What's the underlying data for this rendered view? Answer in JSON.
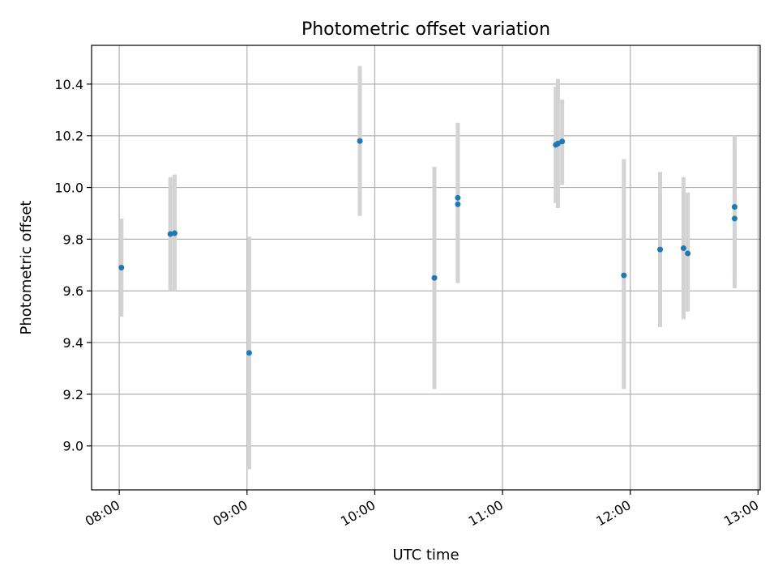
{
  "chart_data": {
    "type": "scatter",
    "title": "Photometric offset variation",
    "xlabel": "UTC time",
    "ylabel": "Photometric offset",
    "xlim": [
      "07:47",
      "13:01"
    ],
    "ylim": [
      8.83,
      10.55
    ],
    "xticks": [
      "08:00",
      "09:00",
      "10:00",
      "11:00",
      "12:00",
      "13:00"
    ],
    "yticks": [
      9.0,
      9.2,
      9.4,
      9.6,
      9.8,
      10.0,
      10.2,
      10.4
    ],
    "ytick_labels": [
      "9.0",
      "9.2",
      "9.4",
      "9.6",
      "9.8",
      "10.0",
      "10.2",
      "10.4"
    ],
    "grid": true,
    "colors": {
      "points": "#1f77b4",
      "errorbars": "#d3d3d3",
      "grid": "#b0b0b0"
    },
    "points": [
      {
        "time": "08:01",
        "y": 9.69,
        "ylow": 9.5,
        "yhigh": 9.88
      },
      {
        "time": "08:24",
        "y": 9.82,
        "ylow": 9.6,
        "yhigh": 10.04
      },
      {
        "time": "08:26",
        "y": 9.823,
        "ylow": 9.6,
        "yhigh": 10.05
      },
      {
        "time": "09:01",
        "y": 9.36,
        "ylow": 8.91,
        "yhigh": 9.81
      },
      {
        "time": "09:53",
        "y": 10.18,
        "ylow": 9.89,
        "yhigh": 10.47
      },
      {
        "time": "10:28",
        "y": 9.65,
        "ylow": 9.22,
        "yhigh": 10.08
      },
      {
        "time": "10:39",
        "y": 9.935,
        "ylow": 9.68,
        "yhigh": 10.19
      },
      {
        "time": "10:39",
        "y": 9.96,
        "ylow": 9.63,
        "yhigh": 10.25
      },
      {
        "time": "11:25",
        "y": 10.165,
        "ylow": 9.94,
        "yhigh": 10.39
      },
      {
        "time": "11:26",
        "y": 10.17,
        "ylow": 9.92,
        "yhigh": 10.42
      },
      {
        "time": "11:28",
        "y": 10.178,
        "ylow": 10.01,
        "yhigh": 10.34
      },
      {
        "time": "11:57",
        "y": 9.66,
        "ylow": 9.22,
        "yhigh": 10.11
      },
      {
        "time": "12:14",
        "y": 9.76,
        "ylow": 9.46,
        "yhigh": 10.06
      },
      {
        "time": "12:25",
        "y": 9.765,
        "ylow": 9.49,
        "yhigh": 10.04
      },
      {
        "time": "12:27",
        "y": 9.745,
        "ylow": 9.52,
        "yhigh": 9.98
      },
      {
        "time": "12:49",
        "y": 9.88,
        "ylow": 9.61,
        "yhigh": 10.15
      },
      {
        "time": "12:49",
        "y": 9.925,
        "ylow": 9.65,
        "yhigh": 10.2
      }
    ]
  }
}
